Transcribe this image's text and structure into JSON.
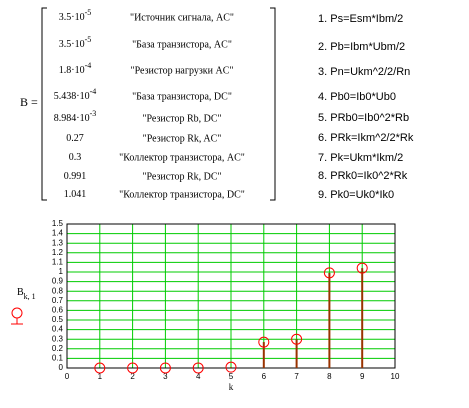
{
  "matrix": {
    "name": "B =",
    "rows": [
      {
        "value": {
          "base": "3.5·10",
          "exp": "-5"
        },
        "label": "\"Источник сигнала, AC\""
      },
      {
        "value": {
          "base": "3.5·10",
          "exp": "-5"
        },
        "label": "\"База транзистора, AC\""
      },
      {
        "value": {
          "base": "1.8·10",
          "exp": "-4"
        },
        "label": "\"Резистор нагрузки AC\""
      },
      {
        "value": {
          "base": "5.438·10",
          "exp": "-4"
        },
        "label": "\"База транзистора, DC\""
      },
      {
        "value": {
          "base": "8.984·10",
          "exp": "-3"
        },
        "label": "\"Резистор Rb, DC\""
      },
      {
        "value": {
          "base": "0.27"
        },
        "label": "\"Резистор Rk, AC\""
      },
      {
        "value": {
          "base": "0.3"
        },
        "label": "\"Коллектор транзистора, AC\""
      },
      {
        "value": {
          "base": "0.991"
        },
        "label": "\"Резистор Rk, DC\""
      },
      {
        "value": {
          "base": "1.041"
        },
        "label": "\"Коллектор транзистора, DC\""
      }
    ]
  },
  "formulas": [
    "1. Ps=Esm*Ibm/2",
    "2. Pb=Ibm*Ubm/2",
    "3. Pn=Ukm^2/2/Rn",
    "4. Pb0=Ib0*Ub0",
    "5. PRb0=Ib0^2*Rb",
    "6. PRk=Ikm^2/2*Rk",
    "7. Pk=Ukm*Ikm/2",
    "8. PRk0=Ik0^2*Rk",
    "9. Pk0=Uk0*Ik0"
  ],
  "chart_data": {
    "type": "stem",
    "xlabel": "k",
    "ylabel": "B",
    "ylabel_sub": "k, 1",
    "x": [
      1,
      2,
      3,
      4,
      5,
      6,
      7,
      8,
      9
    ],
    "series": [
      {
        "name": "B",
        "color": "#993300",
        "marker_color": "#ff0000",
        "values": [
          3.5e-05,
          3.5e-05,
          0.00018,
          0.0005438,
          0.008984,
          0.27,
          0.3,
          0.991,
          1.041
        ]
      }
    ],
    "xlim": [
      0,
      10
    ],
    "xticks": [
      0,
      1,
      2,
      3,
      4,
      5,
      6,
      7,
      8,
      9,
      10
    ],
    "ylim": [
      0,
      1.5
    ],
    "yticks": [
      0,
      0.1,
      0.2,
      0.3,
      0.4,
      0.5,
      0.6,
      0.7,
      0.8,
      0.9,
      1,
      1.1,
      1.2,
      1.3,
      1.4,
      1.5
    ],
    "grid": true,
    "grid_color": "#00cc00"
  }
}
